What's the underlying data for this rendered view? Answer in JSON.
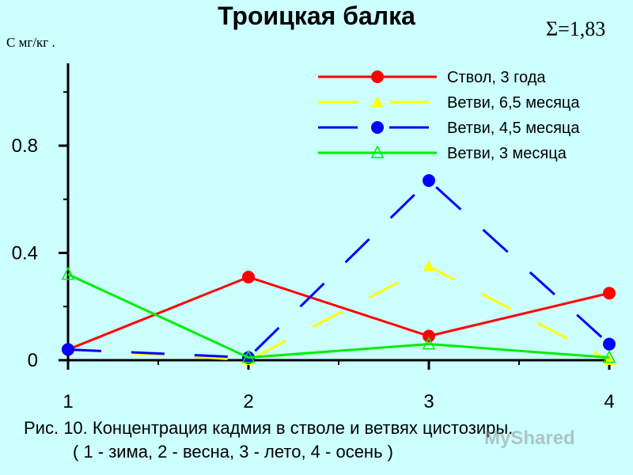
{
  "chart_data": {
    "type": "line",
    "title": "Троицкая балка",
    "ylabel": "С мг/кг .",
    "annotation": "Σ=1,83",
    "x": [
      1,
      2,
      3,
      4
    ],
    "x_tick_labels": [
      "1",
      "2",
      "3",
      "4"
    ],
    "xlim": [
      1,
      4
    ],
    "ylim": [
      0,
      1.08
    ],
    "y_ticks": [
      0,
      0.4,
      0.8
    ],
    "y_tick_labels": [
      "0",
      "0.4",
      "0.8"
    ],
    "grid": false,
    "legend_position": "top-right",
    "series": [
      {
        "name": "Ствол, 3 года",
        "values": [
          0.04,
          0.31,
          0.09,
          0.25
        ],
        "color": "#ff0000",
        "dash": "solid",
        "marker": "circle-filled"
      },
      {
        "name": "Ветви, 6,5 месяца",
        "values": [
          0.04,
          0.0,
          0.35,
          0.0
        ],
        "color": "#ffff00",
        "dash": "long-dash",
        "marker": "triangle-filled"
      },
      {
        "name": "Ветви, 4,5 месяца",
        "values": [
          0.04,
          0.01,
          0.67,
          0.06
        ],
        "color": "#0000ff",
        "dash": "long-dash",
        "marker": "circle-filled"
      },
      {
        "name": "Ветви, 3 месяца",
        "values": [
          0.32,
          0.01,
          0.06,
          0.01
        ],
        "color": "#00ee00",
        "dash": "solid",
        "marker": "triangle-open"
      }
    ]
  },
  "caption": {
    "line1": "Рис. 10. Концентрация кадмия в стволе и ветвях цистозиры.",
    "line2": "( 1 - зима, 2 - весна, 3 - лето, 4 - осень )"
  },
  "watermark": "MyShared"
}
